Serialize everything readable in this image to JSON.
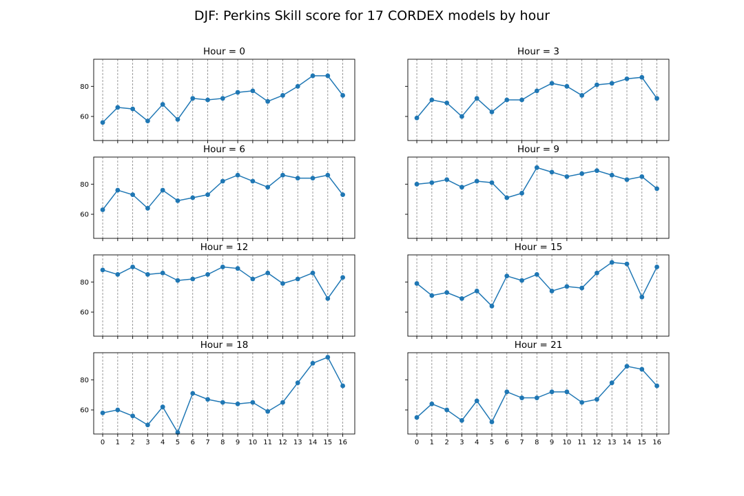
{
  "figure_title": "DJF: Perkins Skill score for 17 CORDEX models by hour",
  "series_color": "#1f77b4",
  "chart_data": [
    {
      "type": "line",
      "title": "Hour = 0",
      "x": [
        0,
        1,
        2,
        3,
        4,
        5,
        6,
        7,
        8,
        9,
        10,
        11,
        12,
        13,
        14,
        15,
        16
      ],
      "values": [
        56,
        66,
        65,
        57,
        68,
        58,
        72,
        71,
        72,
        76,
        77,
        70,
        74,
        80,
        87,
        87,
        74
      ],
      "yticks": [
        60,
        80
      ],
      "ylim": [
        44,
        98
      ],
      "xlim": [
        -0.6,
        16.8
      ],
      "xticks_labeled": false
    },
    {
      "type": "line",
      "title": "Hour = 3",
      "x": [
        0,
        1,
        2,
        3,
        4,
        5,
        6,
        7,
        8,
        9,
        10,
        11,
        12,
        13,
        14,
        15,
        16
      ],
      "values": [
        59,
        71,
        69,
        60,
        72,
        63,
        71,
        71,
        77,
        82,
        80,
        74,
        81,
        82,
        85,
        86,
        72
      ],
      "yticks": [
        60,
        80
      ],
      "ylim": [
        44,
        98
      ],
      "xlim": [
        -0.6,
        16.8
      ],
      "xticks_labeled": false
    },
    {
      "type": "line",
      "title": "Hour = 6",
      "x": [
        0,
        1,
        2,
        3,
        4,
        5,
        6,
        7,
        8,
        9,
        10,
        11,
        12,
        13,
        14,
        15,
        16
      ],
      "values": [
        63,
        76,
        73,
        64,
        76,
        69,
        71,
        73,
        82,
        86,
        82,
        78,
        86,
        84,
        84,
        86,
        73
      ],
      "yticks": [
        60,
        80
      ],
      "ylim": [
        44,
        98
      ],
      "xlim": [
        -0.6,
        16.8
      ],
      "xticks_labeled": false
    },
    {
      "type": "line",
      "title": "Hour = 9",
      "x": [
        0,
        1,
        2,
        3,
        4,
        5,
        6,
        7,
        8,
        9,
        10,
        11,
        12,
        13,
        14,
        15,
        16
      ],
      "values": [
        80,
        81,
        83,
        78,
        82,
        81,
        71,
        74,
        91,
        88,
        85,
        87,
        89,
        86,
        83,
        85,
        77
      ],
      "yticks": [
        60,
        80
      ],
      "ylim": [
        44,
        98
      ],
      "xlim": [
        -0.6,
        16.8
      ],
      "xticks_labeled": false
    },
    {
      "type": "line",
      "title": "Hour = 12",
      "x": [
        0,
        1,
        2,
        3,
        4,
        5,
        6,
        7,
        8,
        9,
        10,
        11,
        12,
        13,
        14,
        15,
        16
      ],
      "values": [
        88,
        85,
        90,
        85,
        86,
        81,
        82,
        85,
        90,
        89,
        82,
        86,
        79,
        82,
        86,
        69,
        83
      ],
      "yticks": [
        60,
        80
      ],
      "ylim": [
        44,
        98
      ],
      "xlim": [
        -0.6,
        16.8
      ],
      "xticks_labeled": false
    },
    {
      "type": "line",
      "title": "Hour = 15",
      "x": [
        0,
        1,
        2,
        3,
        4,
        5,
        6,
        7,
        8,
        9,
        10,
        11,
        12,
        13,
        14,
        15,
        16
      ],
      "values": [
        79,
        71,
        73,
        69,
        74,
        64,
        84,
        81,
        85,
        74,
        77,
        76,
        86,
        93,
        92,
        70,
        90
      ],
      "yticks": [
        60,
        80
      ],
      "ylim": [
        44,
        98
      ],
      "xlim": [
        -0.6,
        16.8
      ],
      "xticks_labeled": false
    },
    {
      "type": "line",
      "title": "Hour = 18",
      "x": [
        0,
        1,
        2,
        3,
        4,
        5,
        6,
        7,
        8,
        9,
        10,
        11,
        12,
        13,
        14,
        15,
        16
      ],
      "values": [
        58,
        60,
        56,
        50,
        62,
        45,
        71,
        67,
        65,
        64,
        65,
        59,
        65,
        78,
        91,
        95,
        76
      ],
      "yticks": [
        60,
        80
      ],
      "ylim": [
        44,
        98
      ],
      "xlim": [
        -0.6,
        16.8
      ],
      "xticks_labeled": true
    },
    {
      "type": "line",
      "title": "Hour = 21",
      "x": [
        0,
        1,
        2,
        3,
        4,
        5,
        6,
        7,
        8,
        9,
        10,
        11,
        12,
        13,
        14,
        15,
        16
      ],
      "values": [
        55,
        64,
        60,
        53,
        66,
        52,
        72,
        68,
        68,
        72,
        72,
        65,
        67,
        78,
        89,
        87,
        76
      ],
      "yticks": [
        60,
        80
      ],
      "ylim": [
        44,
        98
      ],
      "xlim": [
        -0.6,
        16.8
      ],
      "xticks_labeled": true
    }
  ]
}
